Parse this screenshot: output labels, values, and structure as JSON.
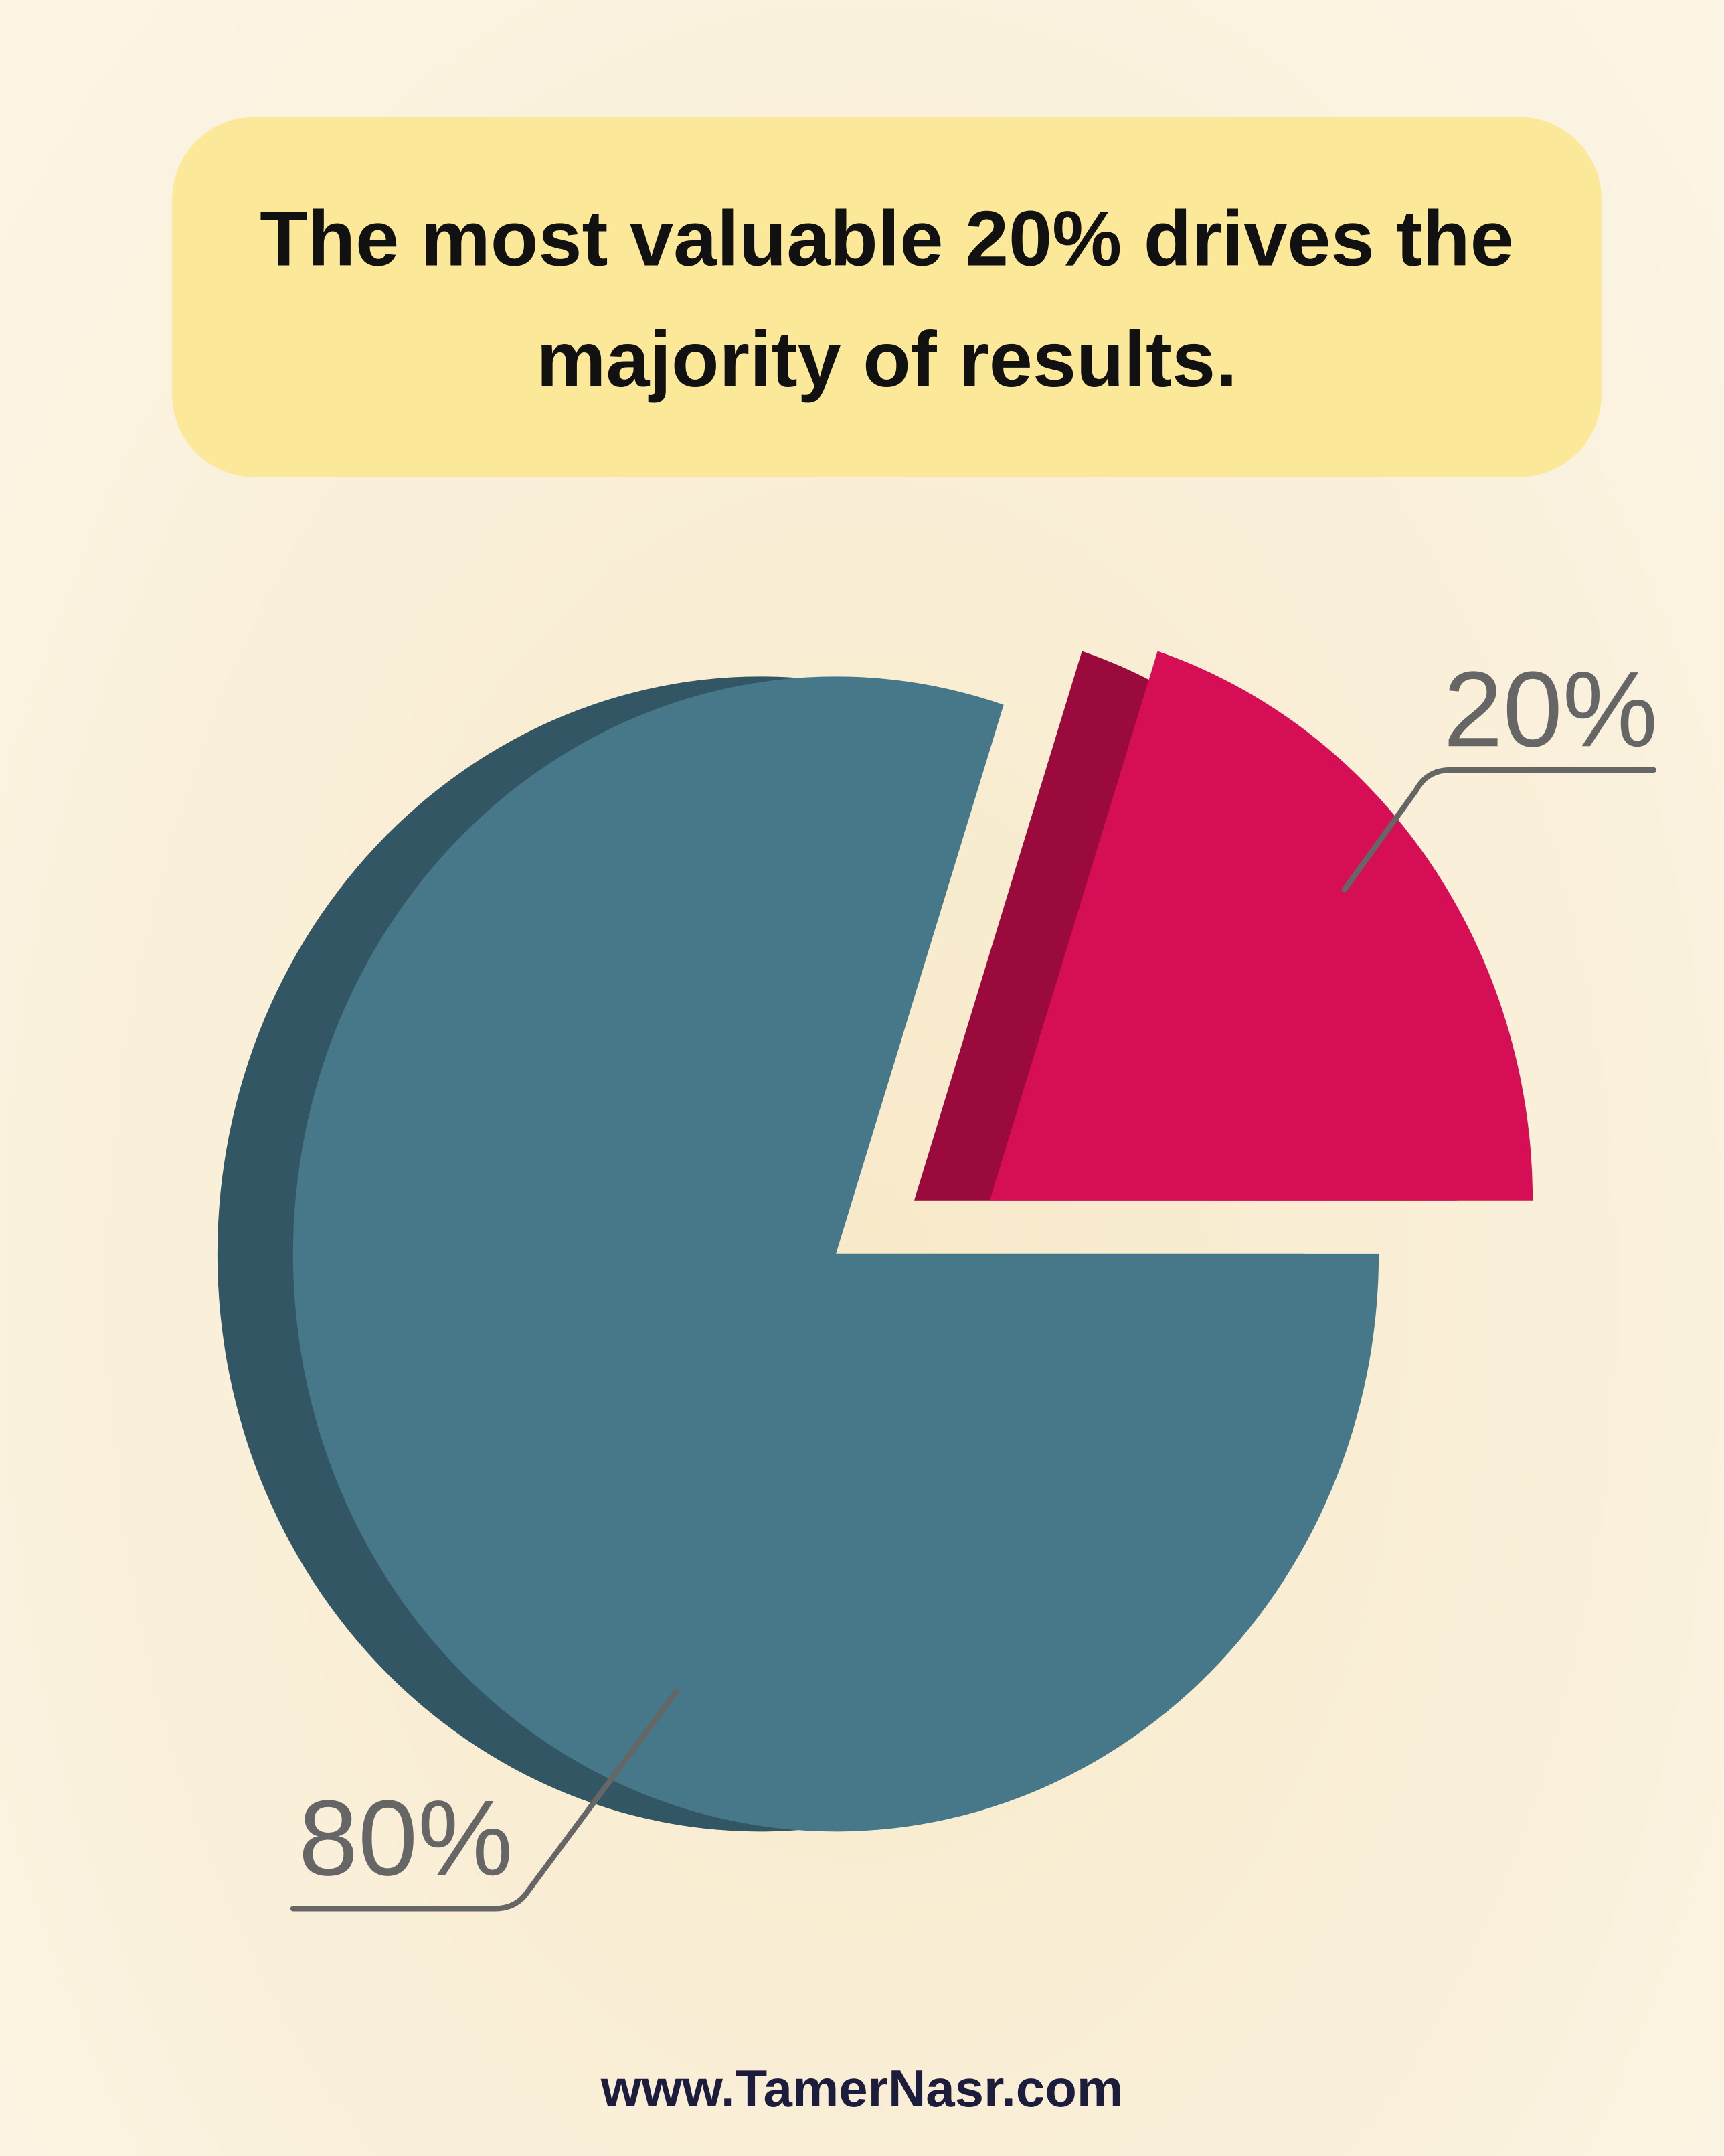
{
  "chart_data": {
    "type": "pie",
    "title": "The most valuable 20% drives the majority of results.",
    "values": [
      20,
      80
    ],
    "value_labels": [
      "20%",
      "80%"
    ],
    "colors": [
      "#d60e55",
      "#467889"
    ],
    "footer": "www.TamerNasr.com"
  }
}
